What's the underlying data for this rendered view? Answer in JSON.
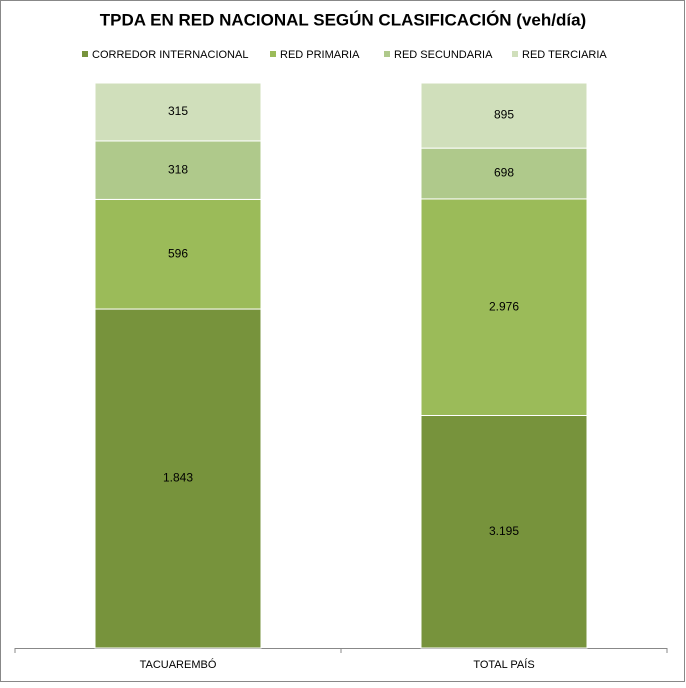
{
  "chart_data": {
    "type": "stacked-percent-bar",
    "title": "TPDA EN RED NACIONAL SEGÚN CLASIFICACIÓN (veh/día)",
    "categories": [
      "TACUAREMBÓ",
      "TOTAL PAÍS"
    ],
    "series": [
      {
        "name": "CORREDOR INTERNACIONAL",
        "color": "#77933c",
        "values": [
          1843,
          3195
        ],
        "value_labels": [
          "1.843",
          "3.195"
        ]
      },
      {
        "name": "RED PRIMARIA",
        "color": "#9bbb59",
        "values": [
          596,
          2976
        ],
        "value_labels": [
          "596",
          "2.976"
        ]
      },
      {
        "name": "RED SECUNDARIA",
        "color": "#afc98b",
        "values": [
          318,
          698
        ]
      },
      {
        "name": "RED TERCIARIA",
        "color": "#d0dfbb",
        "values": [
          315,
          895
        ]
      }
    ]
  }
}
